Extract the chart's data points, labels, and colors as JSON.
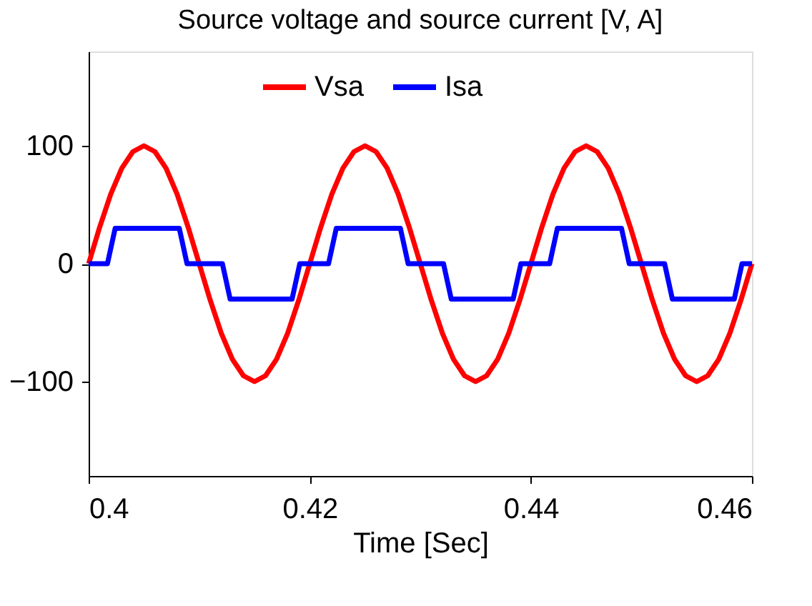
{
  "chart_data": {
    "type": "line",
    "title": "Source voltage and source current [V, A]",
    "xlabel": "Time [Sec]",
    "xlim": [
      0.4,
      0.46
    ],
    "xticks": [
      0.4,
      0.42,
      0.44,
      0.46
    ],
    "ylim": [
      -180,
      180
    ],
    "yticks": [
      -100,
      0,
      100
    ],
    "grid": false,
    "legend": "top",
    "marker": "none",
    "line_style": "solid",
    "series": [
      {
        "name": "Vsa",
        "color": "#ff0000",
        "x": [
          0.4,
          0.401,
          0.402,
          0.403,
          0.404,
          0.405,
          0.406,
          0.407,
          0.408,
          0.409,
          0.41,
          0.411,
          0.412,
          0.413,
          0.414,
          0.415,
          0.416,
          0.417,
          0.418,
          0.419,
          0.42,
          0.421,
          0.422,
          0.423,
          0.424,
          0.425,
          0.426,
          0.427,
          0.428,
          0.429,
          0.43,
          0.431,
          0.432,
          0.433,
          0.434,
          0.435,
          0.436,
          0.437,
          0.438,
          0.439,
          0.44,
          0.441,
          0.442,
          0.443,
          0.444,
          0.445,
          0.446,
          0.447,
          0.448,
          0.449,
          0.45,
          0.451,
          0.452,
          0.453,
          0.454,
          0.455,
          0.456,
          0.457,
          0.458,
          0.459,
          0.46
        ],
        "values": [
          0,
          31,
          59,
          81,
          95,
          100,
          95,
          81,
          59,
          31,
          0,
          -31,
          -59,
          -81,
          -95,
          -100,
          -95,
          -81,
          -59,
          -31,
          0,
          31,
          59,
          81,
          95,
          100,
          95,
          81,
          59,
          31,
          0,
          -31,
          -59,
          -81,
          -95,
          -100,
          -95,
          -81,
          -59,
          -31,
          0,
          31,
          59,
          81,
          95,
          100,
          95,
          81,
          59,
          31,
          0,
          -31,
          -59,
          -81,
          -95,
          -100,
          -95,
          -81,
          -59,
          -31,
          0
        ]
      },
      {
        "name": "Isa",
        "color": "#0000ff",
        "x": [
          0.4,
          0.4017,
          0.4024,
          0.4082,
          0.4089,
          0.4121,
          0.4128,
          0.4184,
          0.4191,
          0.42,
          0.4217,
          0.4224,
          0.4282,
          0.4289,
          0.4321,
          0.4328,
          0.4384,
          0.4391,
          0.44,
          0.4417,
          0.4424,
          0.4482,
          0.4489,
          0.4521,
          0.4528,
          0.4584,
          0.4591,
          0.46
        ],
        "values": [
          0,
          0,
          30,
          30,
          0,
          0,
          -30,
          -30,
          0,
          0,
          0,
          30,
          30,
          0,
          0,
          -30,
          -30,
          0,
          0,
          0,
          30,
          30,
          0,
          0,
          -30,
          -30,
          0,
          0
        ]
      }
    ]
  }
}
